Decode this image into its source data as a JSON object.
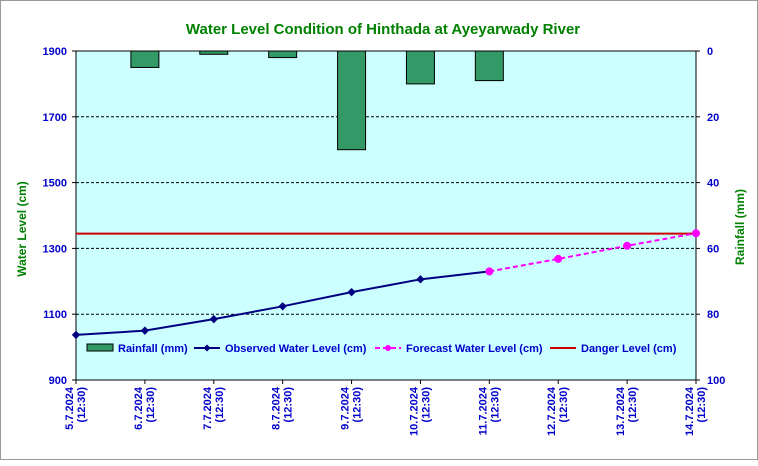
{
  "chart_data": {
    "type": "bar+line",
    "title": "Water Level Condition of Hinthada at Ayeyarwady River",
    "ylabel_left": "Water Level (cm)",
    "ylabel_right": "Rainfall (mm)",
    "ylim_left": [
      900,
      1900
    ],
    "yticks_left": [
      "900",
      "1100",
      "1300",
      "1500",
      "1700",
      "1900"
    ],
    "ylim_right": [
      0,
      100
    ],
    "right_axis_inverted": true,
    "yticks_right": [
      "0",
      "20",
      "40",
      "60",
      "80",
      "100"
    ],
    "grid": "horizontal dashed",
    "legend_position": "inside-bottom",
    "categories": [
      [
        "5.7.2024",
        "(12:30)"
      ],
      [
        "6.7.2024",
        "(12:30)"
      ],
      [
        "7.7.2024",
        "(12:30)"
      ],
      [
        "8.7.2024",
        "(12:30)"
      ],
      [
        "9.7.2024",
        "(12:30)"
      ],
      [
        "10.7.2024",
        "(12:30)"
      ],
      [
        "11.7.2024",
        "(12:30)"
      ],
      [
        "12.7.2024",
        "(12:30)"
      ],
      [
        "13.7.2024",
        "(12:30)"
      ],
      [
        "14.7.2024",
        "(12:30)"
      ]
    ],
    "series": [
      {
        "name": "Rainfall (mm)",
        "type": "bar",
        "axis": "right",
        "color": "#339966",
        "values": [
          null,
          5,
          1,
          2,
          30,
          10,
          9,
          null,
          null,
          null
        ]
      },
      {
        "name": "Observed Water Level (cm)",
        "type": "line",
        "axis": "left",
        "color": "#000080",
        "values": [
          1037,
          1050,
          1085,
          1124,
          1167,
          1206,
          1230,
          null,
          null,
          null
        ]
      },
      {
        "name": "Forecast Water Level (cm)",
        "type": "line-dashed",
        "axis": "left",
        "color": "#ff00ff",
        "values": [
          null,
          null,
          null,
          null,
          null,
          null,
          1230,
          1268,
          1308,
          1346
        ]
      },
      {
        "name": "Danger Level (cm)",
        "type": "hline",
        "axis": "left",
        "color": "#cc0000",
        "value": 1345
      }
    ],
    "colors": {
      "plot_background": "#ccffff",
      "title": "#008000",
      "axis_text": "#0000cc"
    }
  }
}
